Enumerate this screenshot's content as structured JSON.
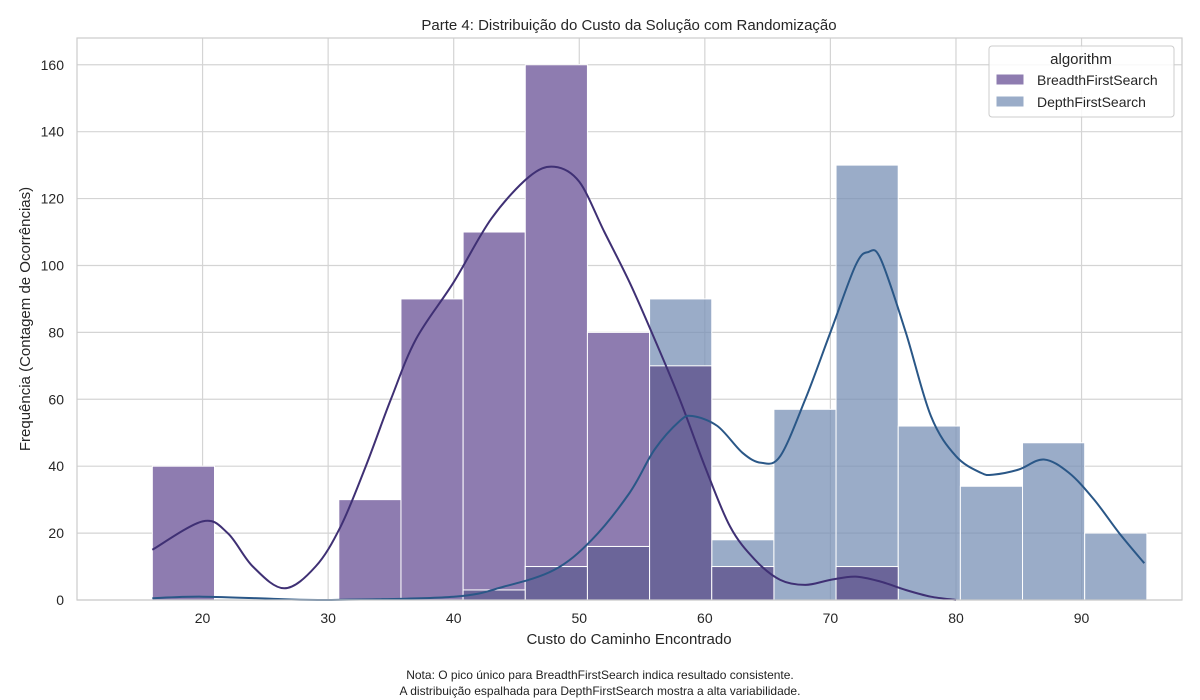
{
  "chart_data": {
    "type": "histogram",
    "title": "Parte 4: Distribuição do Custo da Solução com Randomização",
    "xlabel": "Custo do Caminho Encontrado",
    "ylabel": "Frequência (Contagem de Ocorrências)",
    "xlim": [
      10.0,
      98.0
    ],
    "ylim": [
      0,
      168
    ],
    "xticks": [
      20,
      30,
      40,
      50,
      60,
      70,
      80,
      90
    ],
    "yticks": [
      0,
      20,
      40,
      60,
      80,
      100,
      120,
      140,
      160
    ],
    "grid": true,
    "legend": {
      "title": "algorithm",
      "position": "top-right"
    },
    "bin_edges": [
      16.0,
      20.95,
      25.9,
      30.85,
      35.8,
      40.75,
      45.7,
      50.65,
      55.6,
      60.55,
      65.5,
      70.45,
      75.4,
      80.35,
      85.3,
      90.25,
      95.2
    ],
    "series": [
      {
        "name": "BreadthFirstSearch",
        "color": "#8e7cb0",
        "line_color": "#3f3074",
        "counts": [
          40,
          0,
          0,
          30,
          90,
          110,
          160,
          80,
          70,
          10,
          0,
          10,
          0,
          0,
          0,
          0
        ],
        "kde": [
          [
            16,
            15
          ],
          [
            20,
            23.5
          ],
          [
            22,
            20
          ],
          [
            24,
            10
          ],
          [
            26.5,
            3.5
          ],
          [
            29,
            10
          ],
          [
            31,
            22
          ],
          [
            33,
            40
          ],
          [
            35,
            60
          ],
          [
            37,
            78
          ],
          [
            40,
            95
          ],
          [
            43,
            114
          ],
          [
            46,
            126.5
          ],
          [
            48,
            129.5
          ],
          [
            50,
            125
          ],
          [
            52,
            110
          ],
          [
            54,
            95
          ],
          [
            56,
            78
          ],
          [
            58,
            60
          ],
          [
            60,
            40
          ],
          [
            62,
            22
          ],
          [
            64,
            12
          ],
          [
            66,
            6
          ],
          [
            68,
            4.5
          ],
          [
            70,
            6
          ],
          [
            72,
            7
          ],
          [
            74,
            5.5
          ],
          [
            76,
            3
          ],
          [
            78,
            1
          ],
          [
            80,
            0
          ]
        ]
      },
      {
        "name": "DepthFirstSearch",
        "color": "#7890b5",
        "line_color": "#2a5787",
        "counts": [
          0,
          0,
          0,
          0,
          0,
          3,
          10,
          16,
          90,
          18,
          57,
          130,
          52,
          34,
          47,
          20
        ],
        "kde": [
          [
            16,
            0.5
          ],
          [
            20,
            1
          ],
          [
            26,
            0.3
          ],
          [
            30,
            0
          ],
          [
            40,
            1
          ],
          [
            44,
            4
          ],
          [
            48,
            9
          ],
          [
            51,
            18
          ],
          [
            54,
            32
          ],
          [
            56,
            45
          ],
          [
            58,
            53.5
          ],
          [
            59,
            55
          ],
          [
            61,
            52
          ],
          [
            63,
            44
          ],
          [
            64.5,
            41
          ],
          [
            66,
            43
          ],
          [
            68,
            60
          ],
          [
            70,
            80
          ],
          [
            72,
            100
          ],
          [
            73,
            104
          ],
          [
            74,
            102
          ],
          [
            76,
            80
          ],
          [
            78,
            55
          ],
          [
            80,
            43
          ],
          [
            82,
            38
          ],
          [
            83,
            37.5
          ],
          [
            85,
            39
          ],
          [
            87,
            42
          ],
          [
            89,
            38
          ],
          [
            91,
            30
          ],
          [
            93,
            20
          ],
          [
            95,
            11
          ]
        ]
      }
    ],
    "overlap_color": "#6b6599"
  },
  "notes": {
    "line1": "Nota: O pico único para BreadthFirstSearch indica resultado consistente.",
    "line2": "A distribuição espalhada para DepthFirstSearch mostra a alta variabilidade."
  }
}
